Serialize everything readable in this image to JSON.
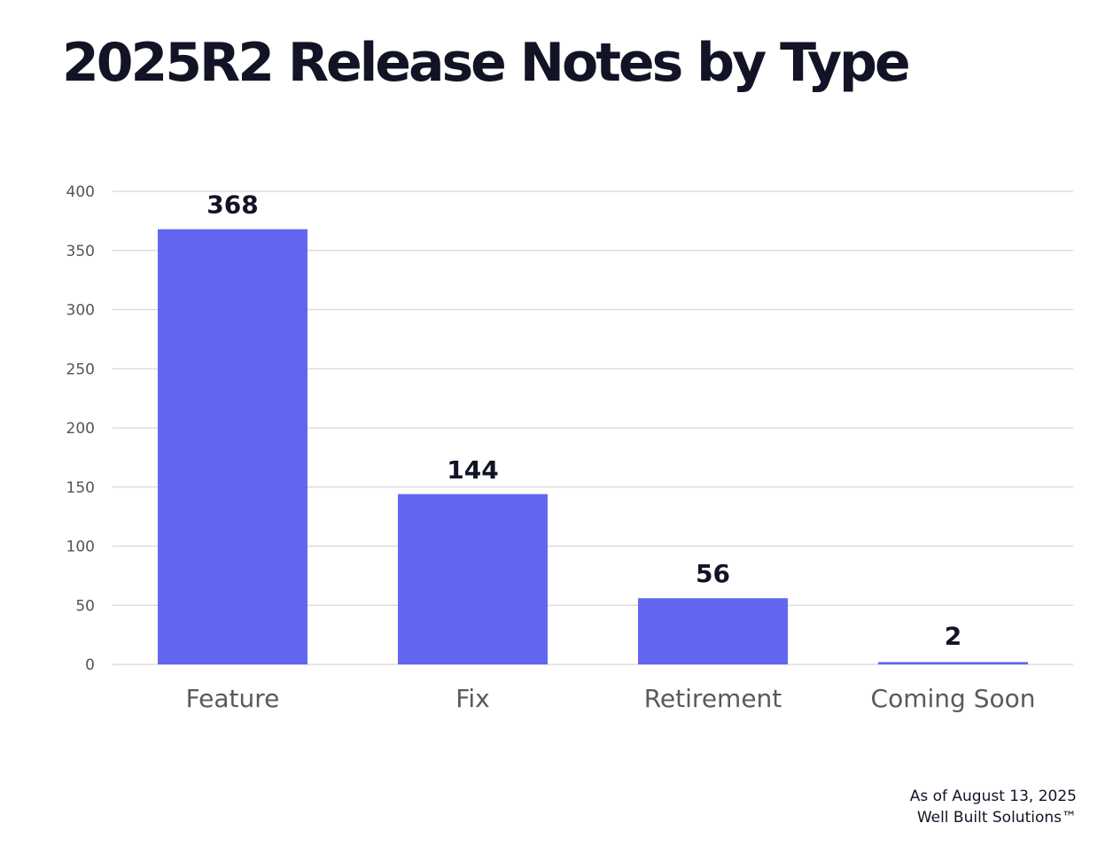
{
  "chart_data": {
    "type": "bar",
    "title": "2025R2 Release Notes by Type",
    "categories": [
      "Feature",
      "Fix",
      "Retirement",
      "Coming Soon"
    ],
    "values": [
      368,
      144,
      56,
      2
    ],
    "data_labels": [
      "368",
      "144",
      "56",
      "2"
    ],
    "yticks": [
      "0",
      "50",
      "100",
      "150",
      "200",
      "250",
      "300",
      "350",
      "400"
    ],
    "ylim": [
      0,
      400
    ],
    "xlabel": "",
    "ylabel": "",
    "grid": true,
    "bar_color": "#6366f1",
    "label_color": "#121426",
    "tick_color": "#555555",
    "category_color": "#5a5a5a"
  },
  "footer": {
    "date": "As of August 13, 2025",
    "company": "Well Built Solutions™"
  }
}
